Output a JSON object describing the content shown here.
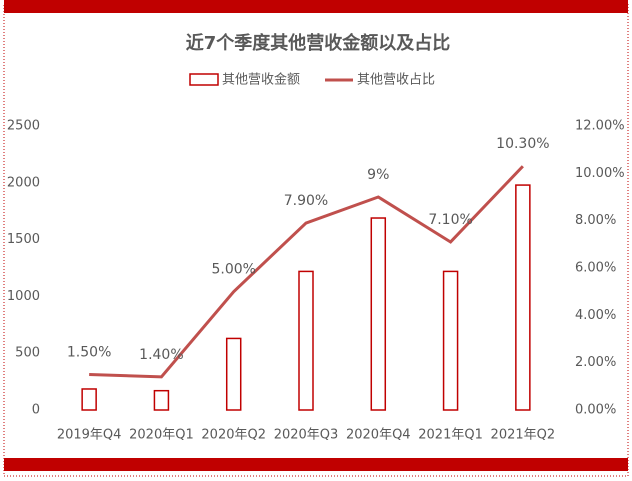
{
  "chart_data": {
    "type": "bar",
    "title": "近7个季度其他营收金额以及占比",
    "categories": [
      "2019年Q4",
      "2020年Q1",
      "2020年Q2",
      "2020年Q3",
      "2020年Q4",
      "2021年Q1",
      "2021年Q2"
    ],
    "series": [
      {
        "name": "其他营收金额",
        "type": "bar",
        "color": "#c00000",
        "values": [
          185,
          170,
          630,
          1220,
          1690,
          1220,
          1980
        ]
      },
      {
        "name": "其他营收占比",
        "type": "line",
        "axis": "y2",
        "color": "#c0504d",
        "values": [
          1.5,
          1.4,
          5.0,
          7.9,
          9,
          7.1,
          10.3
        ],
        "value_labels": [
          "1.50%",
          "1.40%",
          "5.00%",
          "7.90%",
          "9%",
          "7.10%",
          "10.30%"
        ]
      }
    ],
    "ylim": [
      0,
      2500
    ],
    "yticks": [
      0,
      500,
      1000,
      1500,
      2000,
      2500
    ],
    "y2lim": [
      0,
      12
    ],
    "y2ticks": [
      {
        "value": 0,
        "label": "0.00%"
      },
      {
        "value": 2,
        "label": "2.00%"
      },
      {
        "value": 4,
        "label": "4.00%"
      },
      {
        "value": 6,
        "label": "6.00%"
      },
      {
        "value": 8,
        "label": "8.00%"
      },
      {
        "value": 10,
        "label": "10.00%"
      },
      {
        "value": 12,
        "label": "12.00%"
      }
    ],
    "grid": false
  }
}
